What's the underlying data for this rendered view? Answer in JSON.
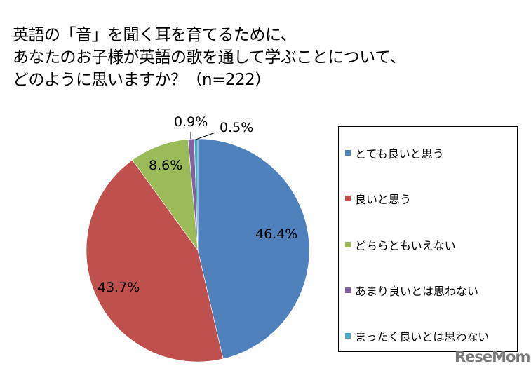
{
  "title": {
    "lines": [
      "英語の「音」を聞く耳を育てるために、",
      "あなたのお子様が英語の歌を通して学ぶことについて、",
      "どのように思いますか？（n=222）"
    ]
  },
  "chart_data": {
    "type": "pie",
    "title": "英語の「音」を聞く耳を育てるために、あなたのお子様が英語の歌を通して学ぶことについて、どのように思いますか？（n=222）",
    "sample_size": "n=222",
    "categories": [
      "とても良いと思う",
      "良いと思う",
      "どちらともいえない",
      "あまり良いとは思わない",
      "まったく良いとは思わない"
    ],
    "values": [
      46.4,
      43.7,
      8.6,
      0.9,
      0.5
    ],
    "labels": [
      "46.4%",
      "43.7%",
      "8.6%",
      "0.9%",
      "0.5%"
    ],
    "colors": [
      "#4f81bd",
      "#c0504d",
      "#9bbb59",
      "#8064a2",
      "#4bacc6"
    ],
    "start_angle": "12 o'clock, clockwise",
    "legend_position": "right"
  },
  "legend": {
    "items": [
      {
        "label": "とても良いと思う",
        "color": "#4f81bd"
      },
      {
        "label": "良いと思う",
        "color": "#c0504d"
      },
      {
        "label": "どちらともいえない",
        "color": "#9bbb59"
      },
      {
        "label": "あまり良いとは思わない",
        "color": "#8064a2"
      },
      {
        "label": "まったく良いとは思わない",
        "color": "#4bacc6"
      }
    ]
  },
  "watermark": {
    "text": "ReseMom"
  }
}
